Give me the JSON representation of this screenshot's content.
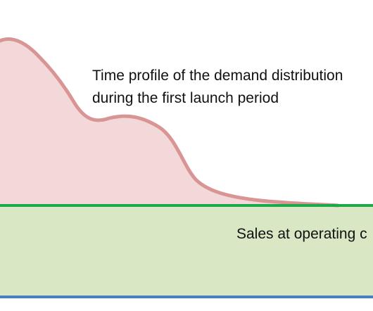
{
  "annotations": {
    "curve_label_line1": "Time profile of the demand distribution",
    "curve_label_line2": "during the first launch period",
    "band_label": "Sales at operating c"
  },
  "colors": {
    "curve_fill": "#f2d8d8",
    "curve_stroke": "#d99494",
    "band_fill": "#d9e7c5",
    "band_top_line": "#1aaa4a",
    "baseline": "#4a7ec0",
    "background": "#ffffff"
  }
}
